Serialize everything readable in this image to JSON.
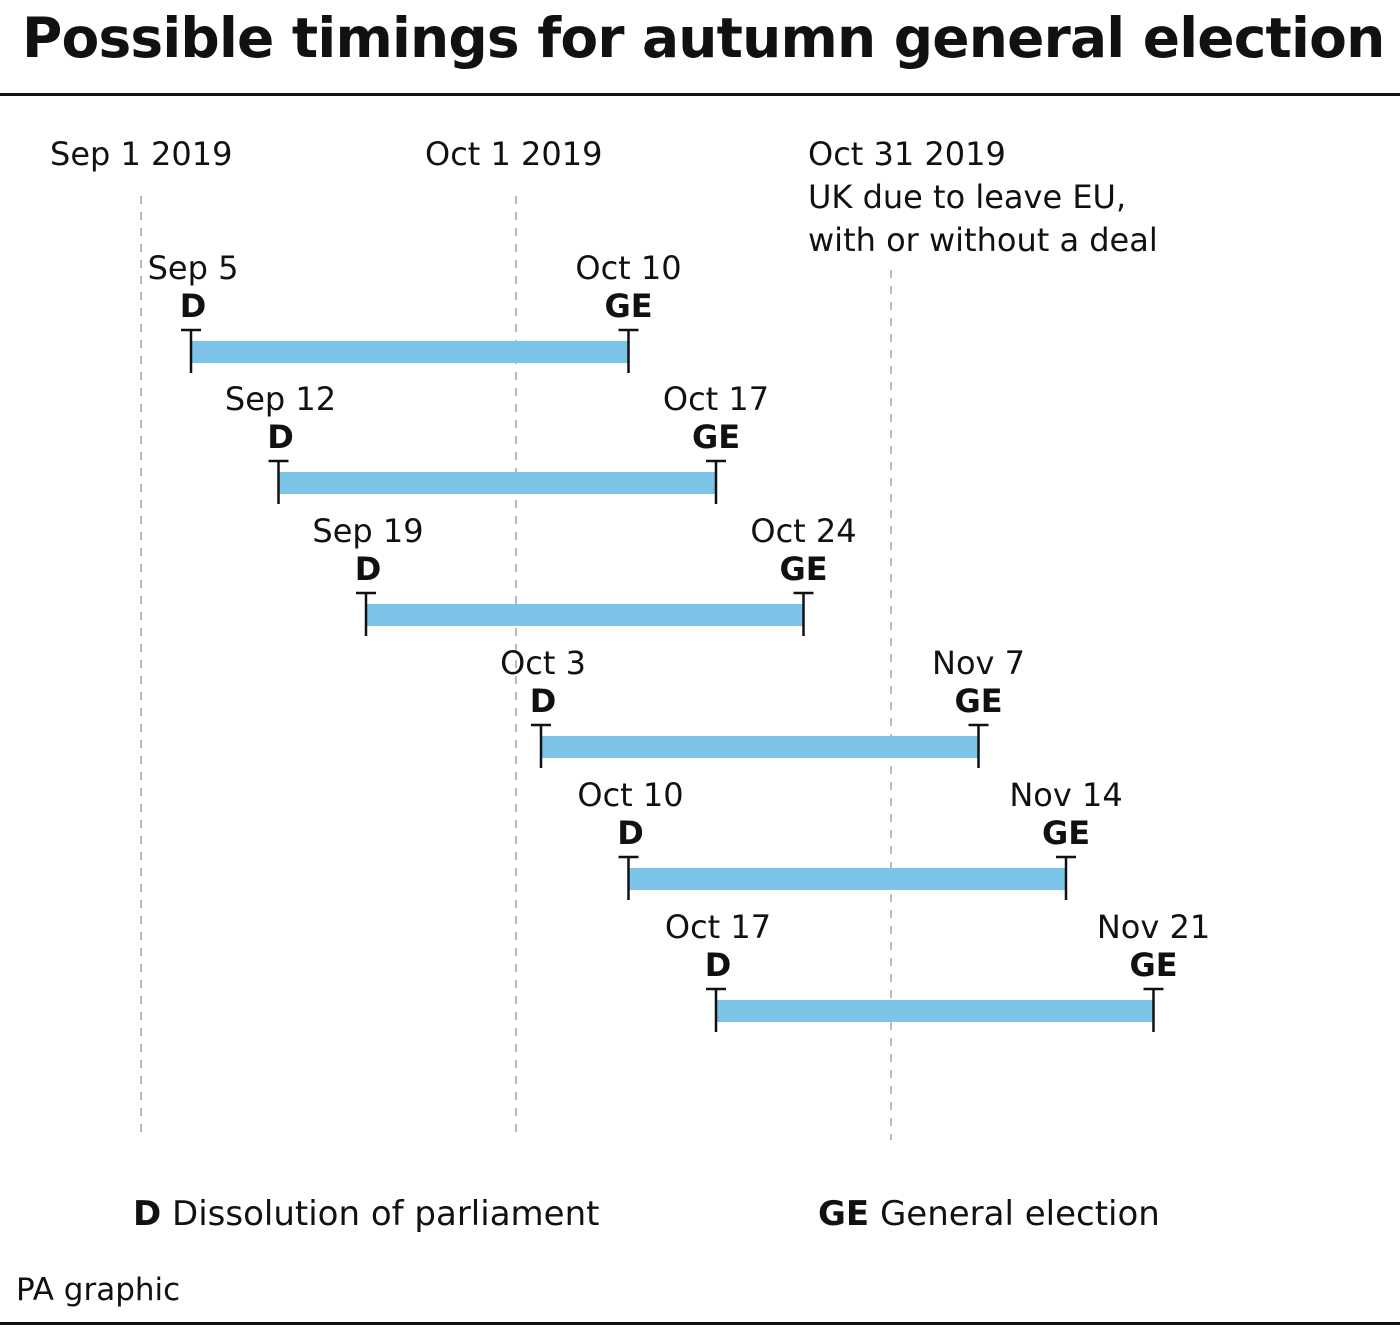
{
  "title": "Possible timings for autumn general election",
  "credit": "PA graphic",
  "colors": {
    "bar": "#7cc3e8",
    "text": "#111111",
    "guide": "#bbbbbb"
  },
  "chart_data": {
    "type": "timeline",
    "title": "Possible timings for autumn general election",
    "x_axis": {
      "type": "date",
      "min": "2019-09-01",
      "max": "2019-11-30"
    },
    "reference_lines": [
      {
        "date": "2019-09-01",
        "label": "Sep 1 2019"
      },
      {
        "date": "2019-10-01",
        "label": "Oct 1 2019"
      },
      {
        "date": "2019-10-31",
        "label": "Oct 31 2019",
        "note_lines": [
          "UK due to leave EU,",
          "with or without a deal"
        ]
      }
    ],
    "scenarios": [
      {
        "start": "2019-09-05",
        "end": "2019-10-10",
        "start_label": "Sep 5",
        "end_label": "Oct 10"
      },
      {
        "start": "2019-09-12",
        "end": "2019-10-17",
        "start_label": "Sep 12",
        "end_label": "Oct 17"
      },
      {
        "start": "2019-09-19",
        "end": "2019-10-24",
        "start_label": "Sep 19",
        "end_label": "Oct 24"
      },
      {
        "start": "2019-10-03",
        "end": "2019-11-07",
        "start_label": "Oct 3",
        "end_label": "Nov 7"
      },
      {
        "start": "2019-10-10",
        "end": "2019-11-14",
        "start_label": "Oct 10",
        "end_label": "Nov 14"
      },
      {
        "start": "2019-10-17",
        "end": "2019-11-21",
        "start_label": "Oct 17",
        "end_label": "Nov 21"
      }
    ],
    "start_code": "D",
    "end_code": "GE",
    "legend": [
      {
        "code": "D",
        "text": "Dissolution of parliament"
      },
      {
        "code": "GE",
        "text": "General election"
      }
    ]
  }
}
